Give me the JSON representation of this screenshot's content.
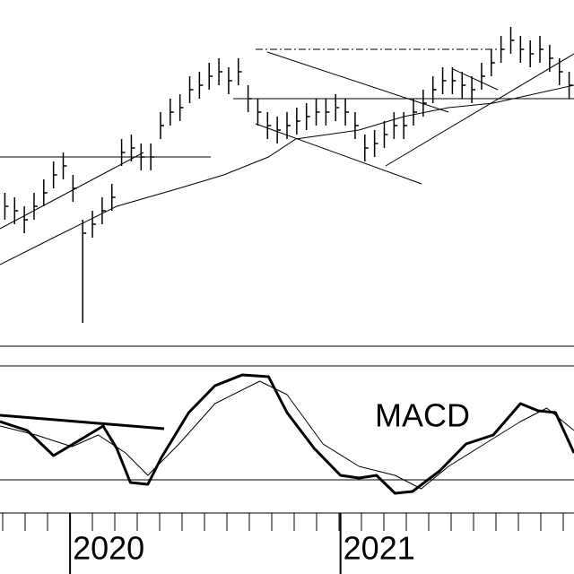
{
  "chart_data": [
    {
      "type": "ohlc",
      "xlim": [
        0,
        59
      ],
      "ylim": [
        0,
        380
      ],
      "high": [
        165,
        160,
        150,
        165,
        180,
        200,
        210,
        185,
        135,
        145,
        160,
        175,
        225,
        230,
        220,
        220,
        255,
        270,
        275,
        295,
        300,
        310,
        315,
        305,
        315,
        285,
        270,
        255,
        250,
        255,
        260,
        265,
        270,
        270,
        275,
        270,
        255,
        230,
        235,
        245,
        255,
        255,
        270,
        280,
        295,
        305,
        305,
        300,
        295,
        310,
        325,
        340,
        350,
        340,
        335,
        340,
        330,
        315,
        300
      ],
      "low": [
        135,
        130,
        120,
        135,
        150,
        170,
        180,
        155,
        20,
        115,
        130,
        145,
        195,
        200,
        190,
        190,
        225,
        240,
        245,
        265,
        270,
        280,
        285,
        275,
        285,
        255,
        240,
        225,
        220,
        225,
        230,
        235,
        240,
        240,
        245,
        240,
        225,
        200,
        205,
        215,
        225,
        225,
        240,
        250,
        265,
        275,
        275,
        270,
        265,
        280,
        295,
        310,
        320,
        310,
        305,
        310,
        300,
        285,
        270
      ],
      "close": [
        150,
        145,
        135,
        150,
        165,
        185,
        195,
        170,
        120,
        130,
        145,
        160,
        210,
        215,
        205,
        205,
        240,
        255,
        260,
        280,
        285,
        295,
        300,
        290,
        300,
        270,
        255,
        240,
        235,
        240,
        245,
        250,
        255,
        255,
        260,
        255,
        240,
        215,
        220,
        230,
        240,
        240,
        255,
        265,
        280,
        290,
        290,
        285,
        280,
        295,
        310,
        325,
        335,
        325,
        320,
        325,
        315,
        300,
        285
      ],
      "color": "#000000",
      "moving_average": {
        "x": [
          0,
          5.5,
          12,
          18.4,
          23,
          27.6,
          30.4,
          36.9,
          41.5,
          46.1,
          50.7,
          59
        ],
        "values": [
          85,
          115,
          150,
          170,
          185,
          205,
          225,
          235,
          250,
          260,
          265,
          285
        ]
      },
      "xticks": [
        {
          "value": 7.2,
          "label": "2020"
        },
        {
          "value": 35,
          "label": "2021"
        }
      ]
    },
    {
      "type": "line",
      "xlim": [
        0,
        59
      ],
      "ylim": [
        -0.3,
        1.27
      ],
      "annotation": "MACD",
      "series": [
        {
          "x": [
            0,
            2.8,
            5.5,
            8.3,
            10.6,
            12,
            13.4,
            15.2,
            16.6,
            19.4,
            22.1,
            24.9,
            27.6,
            29.5,
            32.3,
            35,
            36.9,
            38.7,
            40.6,
            42.4,
            45.2,
            47.9,
            50.7,
            53.5,
            55.3,
            57.1,
            59
          ],
          "values": [
            0.65,
            0.55,
            0.27,
            0.45,
            0.6,
            0.35,
            -0.03,
            -0.05,
            0.25,
            0.75,
            1.05,
            1.17,
            1.15,
            0.75,
            0.35,
            0.05,
            0.02,
            0.05,
            -0.15,
            -0.13,
            0.1,
            0.4,
            0.5,
            0.85,
            0.77,
            0.75,
            0.3
          ],
          "color": "#000000",
          "width": 3
        },
        {
          "x": [
            0,
            3.7,
            7.4,
            10.1,
            12.9,
            15.2,
            18.4,
            22.1,
            26.7,
            29.5,
            33.2,
            36.9,
            40.6,
            43.3,
            46.1,
            49.8,
            53.5,
            56.2,
            59
          ],
          "values": [
            0.6,
            0.5,
            0.37,
            0.5,
            0.3,
            0.05,
            0.4,
            0.85,
            1.1,
            0.95,
            0.4,
            0.15,
            0.05,
            -0.1,
            0.15,
            0.4,
            0.65,
            0.8,
            0.55
          ],
          "color": "#000000",
          "width": 1
        }
      ]
    }
  ]
}
